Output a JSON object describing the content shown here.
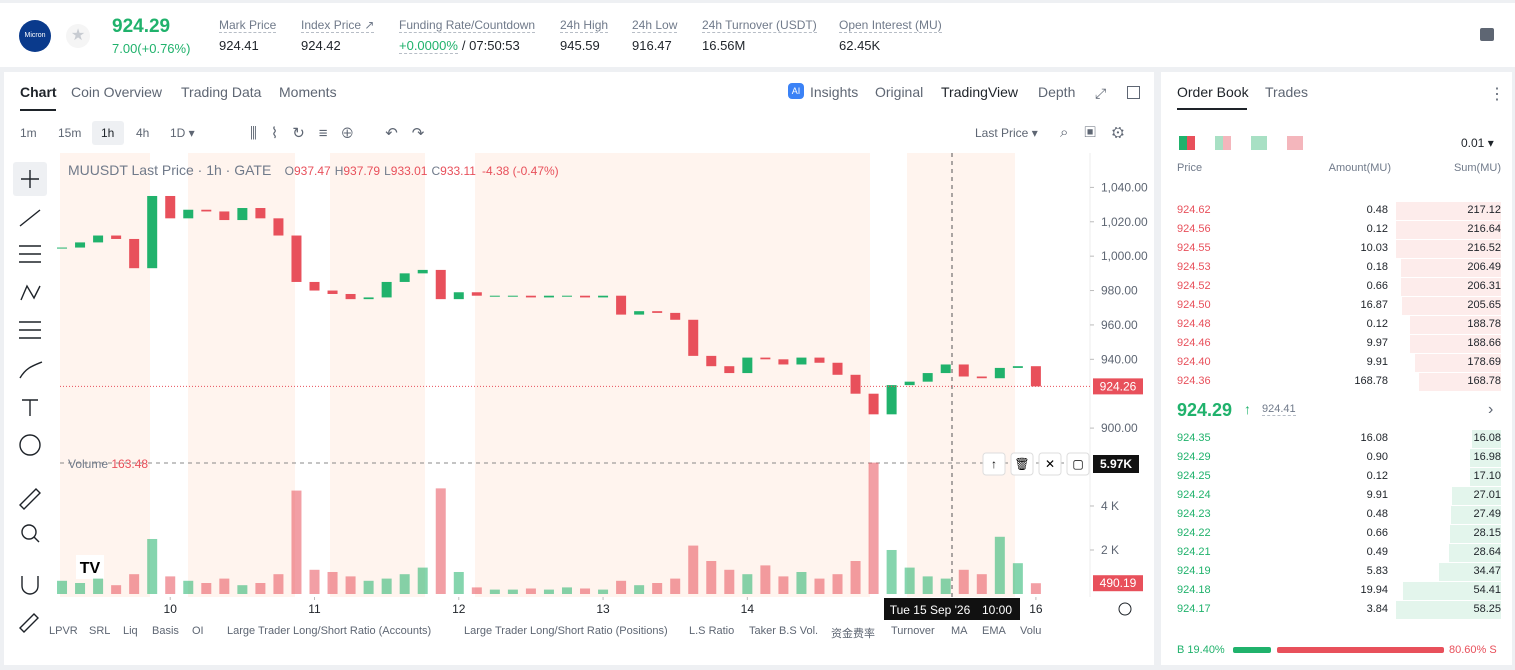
{
  "header": {
    "logo": "Micron",
    "price": "924.29",
    "change": "7.00(+0.76%)",
    "stats": [
      {
        "label": "Mark Price",
        "value": "924.41"
      },
      {
        "label": "Index Price ↗",
        "value": "924.42"
      },
      {
        "label": "Funding Rate/Countdown",
        "value": "+0.0000%",
        "extra": "/ 07:50:53"
      },
      {
        "label": "24h High",
        "value": "945.59"
      },
      {
        "label": "24h Low",
        "value": "916.47"
      },
      {
        "label": "24h Turnover (USDT)",
        "value": "16.56M"
      },
      {
        "label": "Open Interest (MU)",
        "value": "62.45K"
      }
    ]
  },
  "tabs": [
    "Chart",
    "Coin Overview",
    "Trading Data",
    "Moments"
  ],
  "view_tabs": [
    "Insights",
    "Original",
    "TradingView",
    "Depth"
  ],
  "intervals": [
    "1m",
    "15m",
    "1h",
    "4h",
    "1D ▾"
  ],
  "price_source": "Last Price ▾",
  "indicators": [
    "LPVR",
    "SRL",
    "Liq",
    "Basis",
    "OI",
    "Large Trader Long/Short Ratio (Accounts)",
    "Large Trader Long/Short Ratio (Positions)",
    "L.S Ratio",
    "Taker B.S Vol.",
    "资金费率",
    "Turnover",
    "MA",
    "EMA",
    "Volu"
  ],
  "chart_data": {
    "type": "candlestick",
    "title": "MUUSDT Last Price · 1h · GATE",
    "ohlc_legend": [
      {
        "key": "O",
        "value": "937.47"
      },
      {
        "key": "H",
        "value": "937.79"
      },
      {
        "key": "L",
        "value": "933.01"
      },
      {
        "key": "C",
        "value": "933.11"
      }
    ],
    "legend_change": "-4.38 (-0.47%)",
    "up_color": "#20b26c",
    "down_color": "#e8505b",
    "x": [
      9.25,
      9.375,
      9.5,
      9.625,
      9.75,
      9.875,
      10,
      10.125,
      10.25,
      10.375,
      10.5,
      10.625,
      10.75,
      10.875,
      11,
      11.125,
      11.25,
      11.375,
      11.5,
      11.625,
      11.75,
      11.875,
      12,
      12.125,
      12.25,
      12.375,
      12.5,
      12.625,
      12.75,
      12.875,
      13,
      13.125,
      13.25,
      13.375,
      13.5,
      13.625,
      13.75,
      13.875,
      14,
      14.125,
      14.25,
      14.375,
      14.5,
      14.625,
      14.75,
      14.875,
      15,
      15.125,
      15.25,
      15.375,
      15.5,
      15.625,
      15.75,
      15.875,
      16
    ],
    "values": [
      1005,
      1008,
      1012,
      1010,
      993,
      1035,
      1022,
      1027,
      1026,
      1021,
      1028,
      1022,
      1012,
      985,
      980,
      978,
      975,
      976,
      985,
      990,
      992,
      975,
      979,
      977,
      977,
      977,
      976,
      977,
      977,
      976,
      977,
      966,
      968,
      967,
      963,
      942,
      936,
      932,
      941,
      940,
      937,
      941,
      938,
      931,
      920,
      908,
      925,
      927,
      932,
      937,
      930,
      929,
      935,
      936,
      924.26
    ],
    "xlim": [
      9.236,
      16.375
    ],
    "xticks": [
      10,
      11,
      12,
      13,
      14,
      16
    ],
    "ylim": [
      889,
      1060
    ],
    "yticks": [
      {
        "value": 900,
        "label": "900.00"
      },
      {
        "value": 940,
        "label": "940.00"
      },
      {
        "value": 960,
        "label": "960.00"
      },
      {
        "value": 980,
        "label": "980.00"
      },
      {
        "value": 1000,
        "label": "1,000.00"
      },
      {
        "value": 1020,
        "label": "1,020.00"
      },
      {
        "value": 1040,
        "label": "1,040.00"
      }
    ],
    "crosshair_date": "Tue 15 Sep '26",
    "crosshair_time": "10:00",
    "volume": {
      "name": "Volume",
      "legend_value": "163.48",
      "crosshair_label": "5.97K",
      "values": [
        600,
        500,
        700,
        400,
        900,
        2500,
        800,
        600,
        500,
        700,
        400,
        500,
        900,
        4700,
        1100,
        1000,
        800,
        600,
        700,
        900,
        1200,
        4800,
        1000,
        300,
        200,
        200,
        250,
        200,
        300,
        250,
        200,
        600,
        400,
        500,
        700,
        2200,
        1500,
        1100,
        900,
        1300,
        800,
        1000,
        700,
        900,
        1500,
        5970,
        2000,
        1200,
        800,
        700,
        1100,
        900,
        2600,
        1400,
        490.19
      ],
      "ylim": [
        0,
        6680
      ],
      "yticks": [
        {
          "value": 2000,
          "label": "2 K"
        },
        {
          "value": 4000,
          "label": "4 K"
        }
      ]
    }
  },
  "order_book": {
    "tabs": [
      "Order Book",
      "Trades"
    ],
    "tick_size": "0.01 ▾",
    "columns": [
      "Price",
      "Amount(MU)",
      "Sum(MU)"
    ],
    "asks": [
      [
        "924.62",
        "0.48",
        "217.12"
      ],
      [
        "924.56",
        "0.12",
        "216.64"
      ],
      [
        "924.55",
        "10.03",
        "216.52"
      ],
      [
        "924.53",
        "0.18",
        "206.49"
      ],
      [
        "924.52",
        "0.66",
        "206.31"
      ],
      [
        "924.50",
        "16.87",
        "205.65"
      ],
      [
        "924.48",
        "0.12",
        "188.78"
      ],
      [
        "924.46",
        "9.97",
        "188.66"
      ],
      [
        "924.40",
        "9.91",
        "178.69"
      ],
      [
        "924.36",
        "168.78",
        "168.78"
      ]
    ],
    "mid_price": "924.29",
    "mark_price": "924.41",
    "bids": [
      [
        "924.35",
        "16.08",
        "16.08"
      ],
      [
        "924.29",
        "0.90",
        "16.98"
      ],
      [
        "924.25",
        "0.12",
        "17.10"
      ],
      [
        "924.24",
        "9.91",
        "27.01"
      ],
      [
        "924.23",
        "0.48",
        "27.49"
      ],
      [
        "924.22",
        "0.66",
        "28.15"
      ],
      [
        "924.21",
        "0.49",
        "28.64"
      ],
      [
        "924.19",
        "5.83",
        "34.47"
      ],
      [
        "924.18",
        "19.94",
        "54.41"
      ],
      [
        "924.17",
        "3.84",
        "58.25"
      ]
    ],
    "buy_prefix": "B",
    "buy_ratio": {
      "value": 19.4,
      "label": "19.40%"
    },
    "sell_ratio": {
      "value": 80.6,
      "label": "80.60%"
    },
    "sell_suffix": "S"
  }
}
